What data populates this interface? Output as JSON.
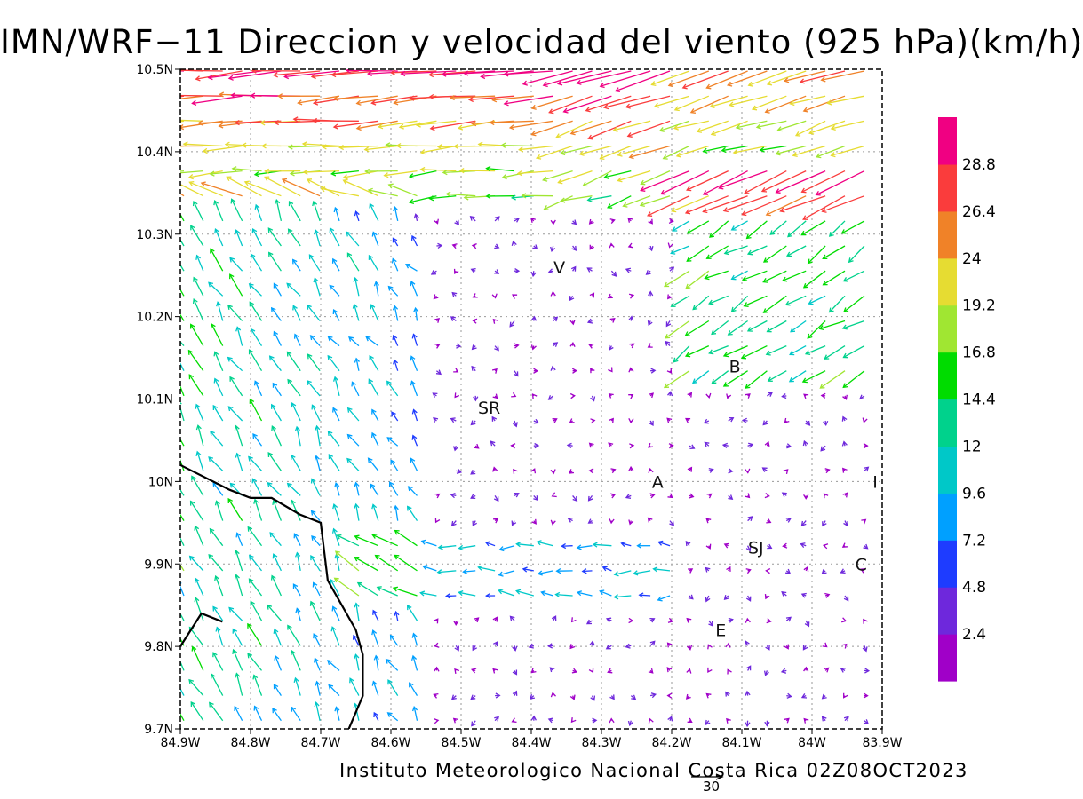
{
  "title": "IMN/WRF−11 Direccion y velocidad del viento (925 hPa)(km/h)",
  "footer": "Instituto Meteorologico Nacional Costa Rica 02Z08OCT2023",
  "reference_vector": {
    "value": 30,
    "label": "30"
  },
  "axes": {
    "lon_ticks": [
      "84.9W",
      "84.8W",
      "84.7W",
      "84.6W",
      "84.5W",
      "84.4W",
      "84.3W",
      "84.2W",
      "84.1W",
      "84W",
      "83.9W"
    ],
    "lat_ticks": [
      "10.5N",
      "10.4N",
      "10.3N",
      "10.2N",
      "10.1N",
      "10N",
      "9.9N",
      "9.8N",
      "9.7N"
    ],
    "lon_range": [
      -84.9,
      -83.9
    ],
    "lat_range": [
      9.7,
      10.5
    ],
    "grid": "dotted"
  },
  "colorbar": {
    "labels": [
      "2.4",
      "4.8",
      "7.2",
      "9.6",
      "12",
      "14.4",
      "16.8",
      "19.2",
      "24",
      "26.4",
      "28.8"
    ],
    "colors": [
      "#a000c8",
      "#6e28dc",
      "#1e3cff",
      "#00a0ff",
      "#00c8c8",
      "#00d28c",
      "#00dc00",
      "#a0e632",
      "#e6dc32",
      "#f08228",
      "#fa3c3c",
      "#f00082"
    ]
  },
  "places": [
    {
      "label": "V",
      "lon": -84.36,
      "lat": 10.26
    },
    {
      "label": "B",
      "lon": -84.11,
      "lat": 10.14
    },
    {
      "label": "SR",
      "lon": -84.46,
      "lat": 10.09
    },
    {
      "label": "A",
      "lon": -84.22,
      "lat": 10.0
    },
    {
      "label": "I",
      "lon": -83.91,
      "lat": 10.0
    },
    {
      "label": "SJ",
      "lon": -84.08,
      "lat": 9.92
    },
    {
      "label": "C",
      "lon": -83.93,
      "lat": 9.9
    },
    {
      "label": "E",
      "lon": -84.13,
      "lat": 9.82
    }
  ],
  "coastline": [
    [
      -84.9,
      10.02
    ],
    [
      -84.83,
      9.99
    ],
    [
      -84.8,
      9.98
    ],
    [
      -84.77,
      9.98
    ],
    [
      -84.73,
      9.96
    ],
    [
      -84.7,
      9.95
    ],
    [
      -84.69,
      9.88
    ],
    [
      -84.65,
      9.82
    ],
    [
      -84.64,
      9.79
    ],
    [
      -84.64,
      9.74
    ],
    [
      -84.66,
      9.7
    ]
  ],
  "coastline2": [
    [
      -84.9,
      9.8
    ],
    [
      -84.87,
      9.84
    ],
    [
      -84.84,
      9.83
    ]
  ],
  "wind_field": {
    "description": "925 hPa wind vectors",
    "regimes": [
      {
        "region": "north (10.35N-10.5N)",
        "direction": "from east",
        "speed_kmh": [
          19,
          30
        ]
      },
      {
        "region": "west (84.9W-84.6W)",
        "direction": "from southeast",
        "speed_kmh": [
          8,
          14
        ]
      },
      {
        "region": "central valley",
        "direction": "variable",
        "speed_kmh": [
          2,
          8
        ]
      }
    ]
  }
}
